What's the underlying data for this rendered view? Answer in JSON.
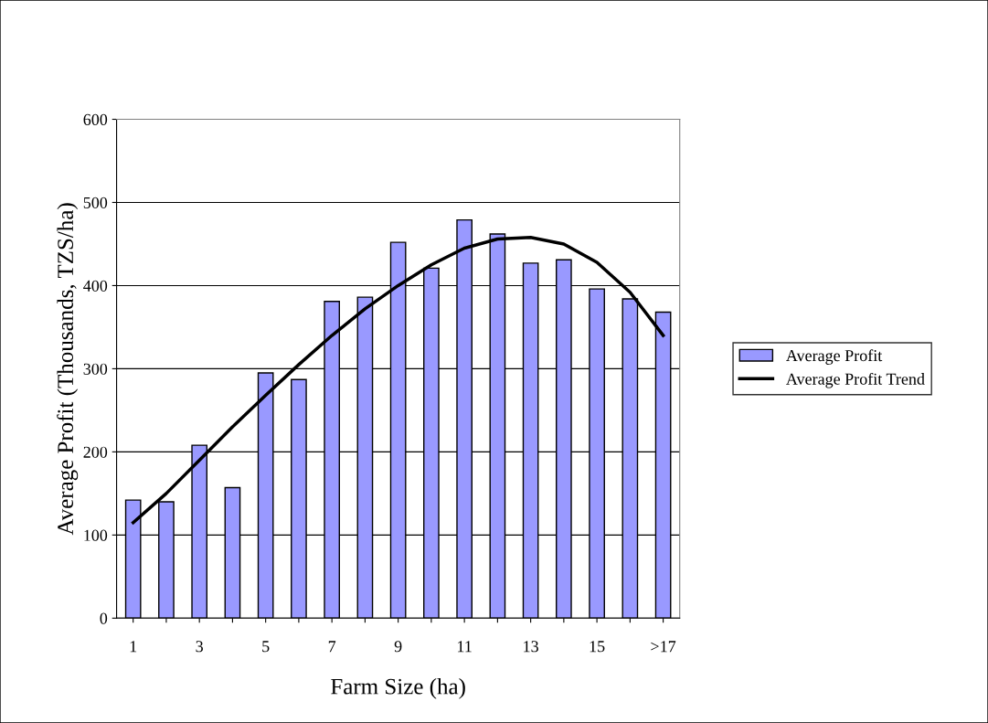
{
  "chart_data": {
    "type": "bar",
    "xlabel": "Farm Size (ha)",
    "ylabel": "Average Profit (Thousands, TZS/ha)",
    "categories": [
      "1",
      null,
      "3",
      null,
      "5",
      null,
      "7",
      null,
      "9",
      null,
      "11",
      null,
      "13",
      null,
      "15",
      null,
      ">17"
    ],
    "series": [
      {
        "name": "Average Profit",
        "color": "#9999ff",
        "values": [
          142,
          140,
          208,
          157,
          295,
          287,
          381,
          386,
          452,
          421,
          479,
          462,
          427,
          431,
          396,
          384,
          368
        ]
      },
      {
        "name": "Average Profit Trend",
        "type": "line",
        "color": "#000000",
        "values": [
          115,
          150,
          190,
          230,
          268,
          305,
          340,
          372,
          400,
          425,
          445,
          456,
          458,
          450,
          428,
          392,
          340
        ]
      }
    ],
    "ylim": [
      0,
      600
    ],
    "yticks": [
      0,
      100,
      200,
      300,
      400,
      500,
      600
    ],
    "grid": "y",
    "legend": "right"
  }
}
